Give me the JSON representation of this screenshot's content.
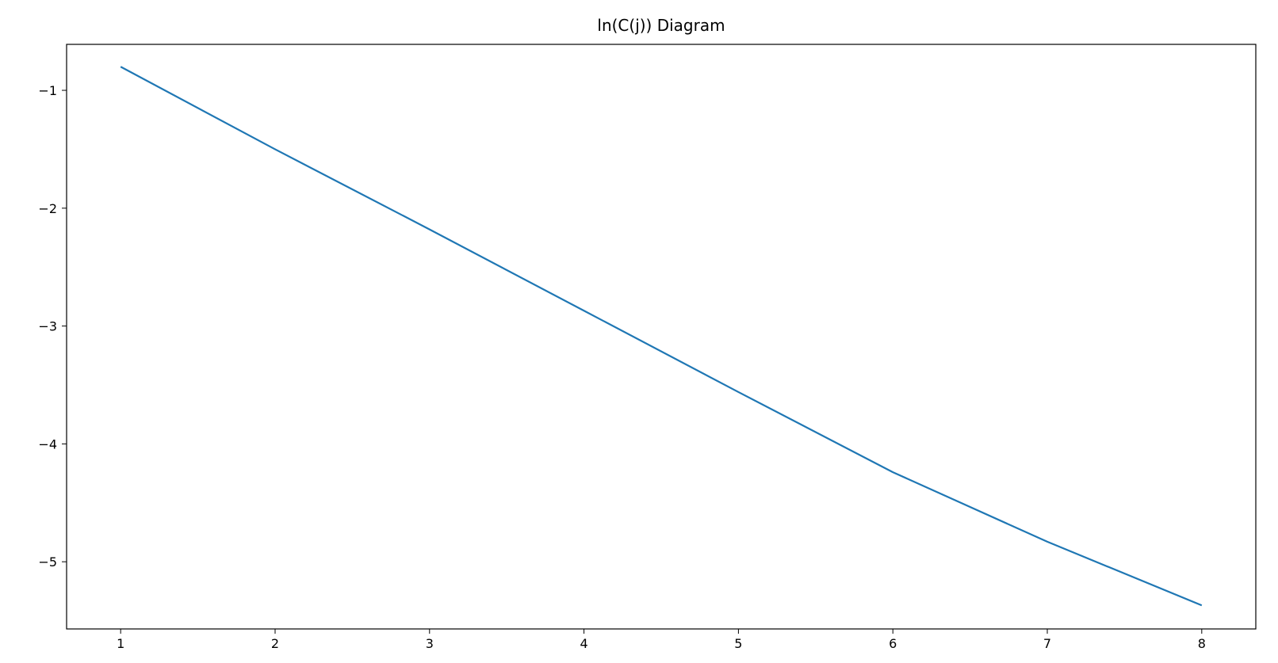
{
  "chart_data": {
    "type": "line",
    "title": "ln(C(j)) Diagram",
    "xlabel": "",
    "ylabel": "",
    "x": [
      1,
      2,
      3,
      4,
      5,
      6,
      7,
      8
    ],
    "series": [
      {
        "values": [
          -0.8,
          -1.5,
          -2.18,
          -2.87,
          -3.56,
          -4.24,
          -4.83,
          -5.37
        ],
        "color": "#1f77b4"
      }
    ],
    "xlim": [
      0.65,
      8.35
    ],
    "ylim": [
      -5.57,
      -0.61
    ],
    "xticks": [
      1,
      2,
      3,
      4,
      5,
      6,
      7,
      8
    ],
    "xtick_labels": [
      "1",
      "2",
      "3",
      "4",
      "5",
      "6",
      "7",
      "8"
    ],
    "yticks": [
      -1,
      -2,
      -3,
      -4,
      -5
    ],
    "ytick_labels": [
      "−1",
      "−2",
      "−3",
      "−4",
      "−5"
    ],
    "grid": false,
    "legend": "none"
  }
}
